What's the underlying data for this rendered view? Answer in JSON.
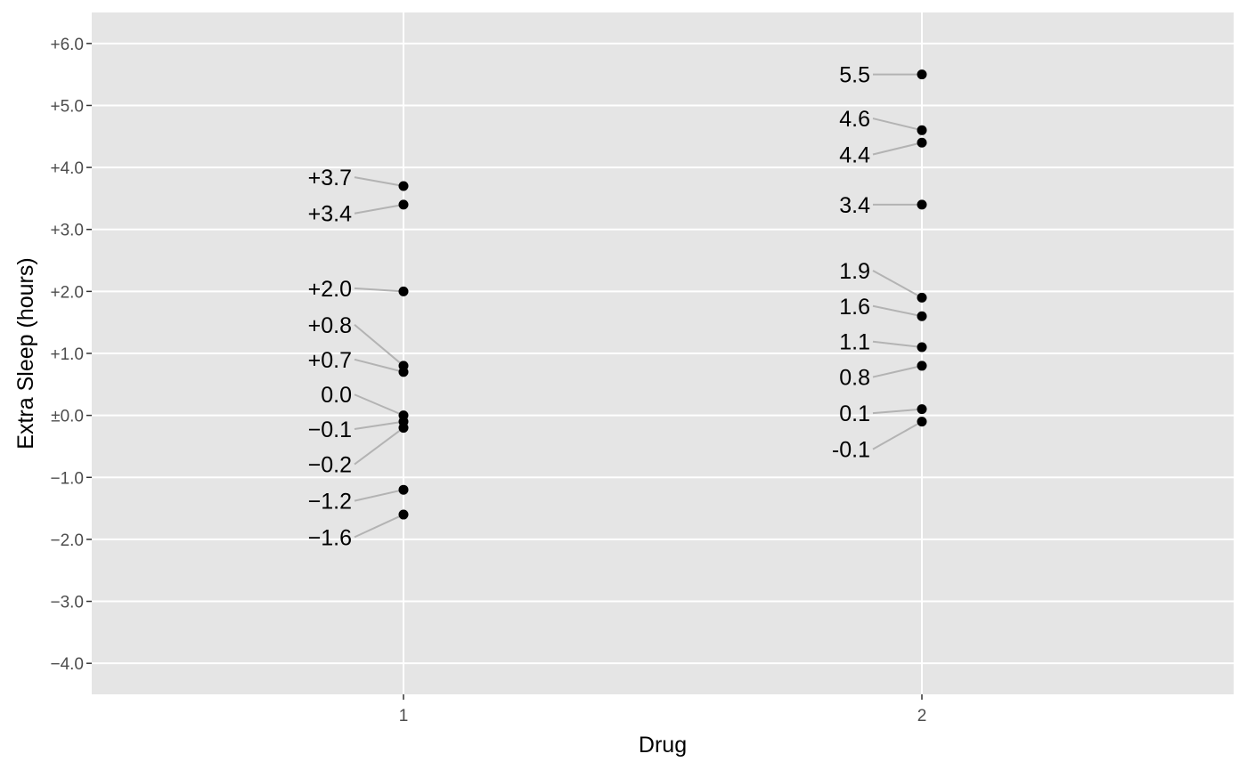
{
  "chart_data": {
    "type": "scatter",
    "title": "",
    "xlabel": "Drug",
    "ylabel": "Extra Sleep (hours)",
    "x_categories": [
      "1",
      "2"
    ],
    "ylim": [
      -4.5,
      6.5
    ],
    "y_ticks": [
      {
        "value": 6,
        "label": "+6.0"
      },
      {
        "value": 5,
        "label": "+5.0"
      },
      {
        "value": 4,
        "label": "+4.0"
      },
      {
        "value": 3,
        "label": "+3.0"
      },
      {
        "value": 2,
        "label": "+2.0"
      },
      {
        "value": 1,
        "label": "+1.0"
      },
      {
        "value": 0,
        "label": "±0.0"
      },
      {
        "value": -1,
        "label": "−1.0"
      },
      {
        "value": -2,
        "label": "−2.0"
      },
      {
        "value": -3,
        "label": "−3.0"
      },
      {
        "value": -4,
        "label": "−4.0"
      }
    ],
    "grid": true,
    "colors": {
      "panel": "#e5e5e5",
      "grid": "#ffffff",
      "point": "#000000",
      "connector": "#b3b3b3"
    },
    "groups": [
      {
        "x": "1",
        "points": [
          {
            "y": 3.7,
            "label": "+3.7"
          },
          {
            "y": 3.4,
            "label": "+3.4"
          },
          {
            "y": 2.0,
            "label": "+2.0"
          },
          {
            "y": 0.8,
            "label": "+0.8"
          },
          {
            "y": 0.7,
            "label": "+0.7"
          },
          {
            "y": 0.0,
            "label": "0.0"
          },
          {
            "y": -0.1,
            "label": "−0.1"
          },
          {
            "y": -0.2,
            "label": "−0.2"
          },
          {
            "y": -1.2,
            "label": "−1.2"
          },
          {
            "y": -1.6,
            "label": "−1.6"
          }
        ]
      },
      {
        "x": "2",
        "points": [
          {
            "y": 5.5,
            "label": "5.5"
          },
          {
            "y": 4.6,
            "label": "4.6"
          },
          {
            "y": 4.4,
            "label": "4.4"
          },
          {
            "y": 3.4,
            "label": "3.4"
          },
          {
            "y": 1.9,
            "label": "1.9"
          },
          {
            "y": 1.6,
            "label": "1.6"
          },
          {
            "y": 1.1,
            "label": "1.1"
          },
          {
            "y": 0.8,
            "label": "0.8"
          },
          {
            "y": 0.1,
            "label": "0.1"
          },
          {
            "y": -0.1,
            "label": "-0.1"
          }
        ]
      }
    ]
  }
}
